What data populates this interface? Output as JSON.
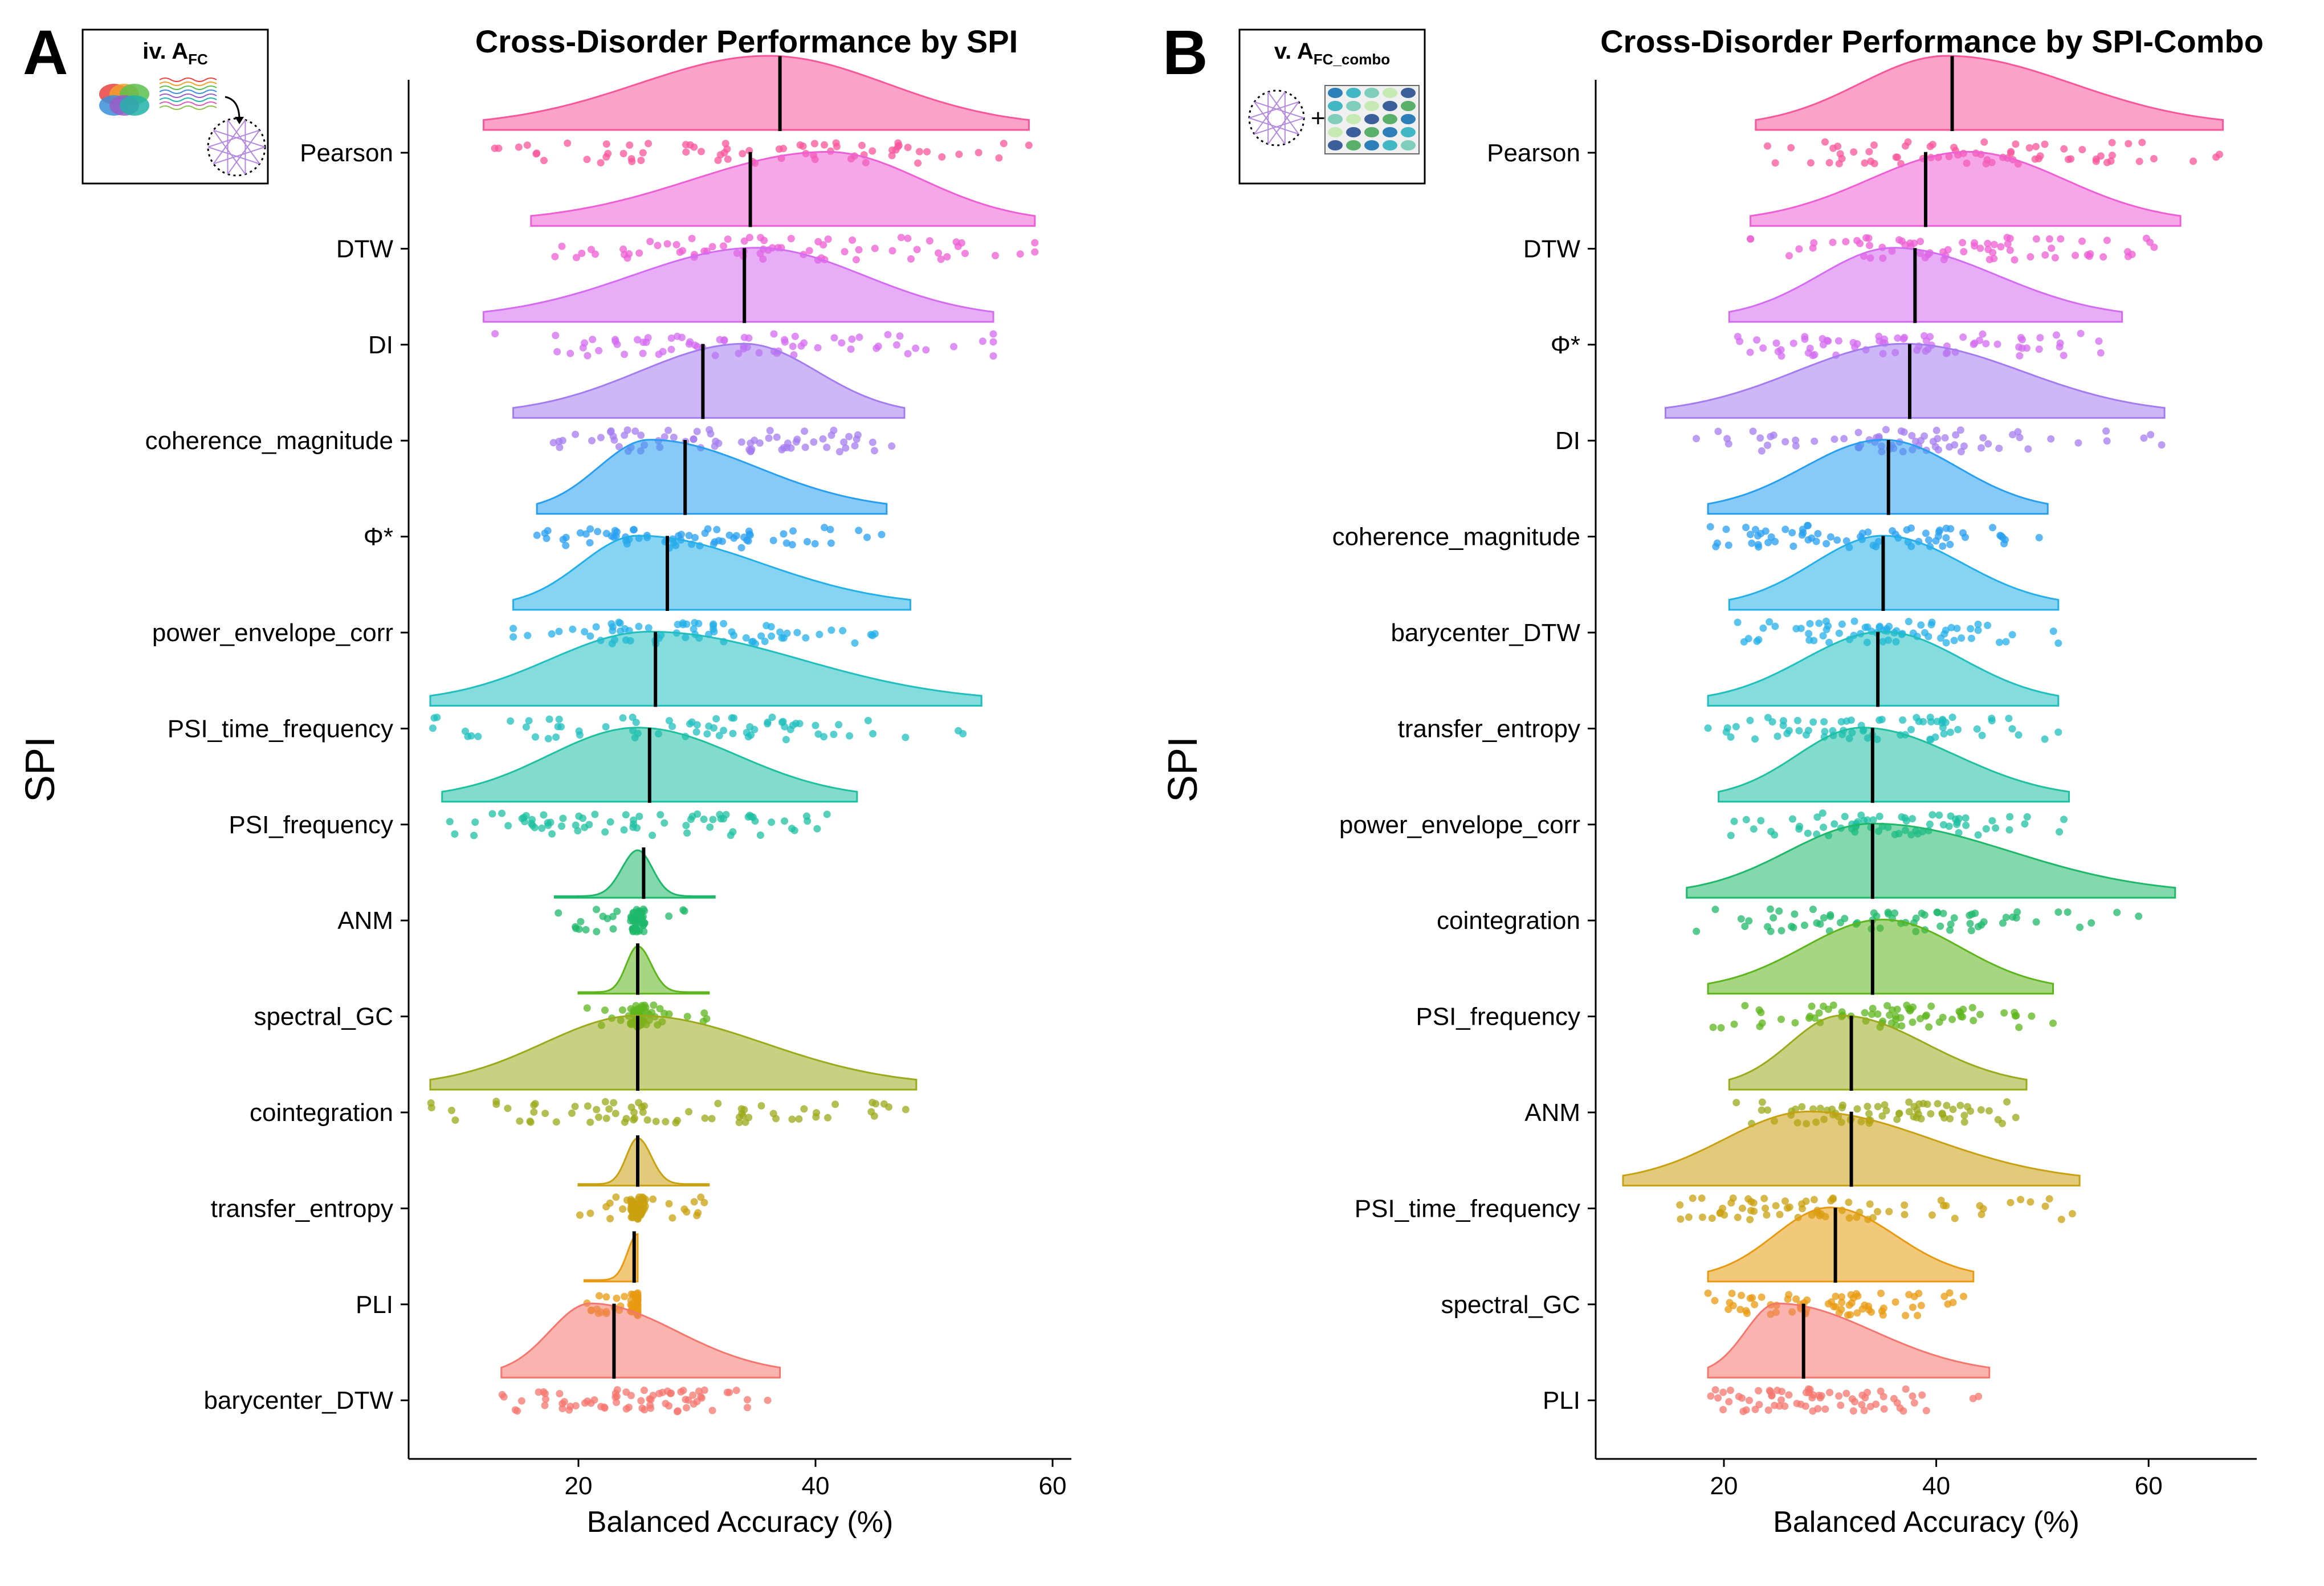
{
  "chart_data": [
    {
      "panel": "A",
      "type": "raincloud",
      "title": "Cross-Disorder Performance by SPI",
      "xlabel": "Balanced Accuracy (%)",
      "ylabel": "SPI",
      "xlim": [
        5,
        62
      ],
      "xticks": [
        20,
        40,
        60
      ],
      "inset": {
        "label": "iv. A",
        "subscript": "FC"
      },
      "grid": false,
      "legend": "none",
      "series": [
        {
          "name": "Pearson",
          "color": "#F8569B",
          "min": 12,
          "max": 58,
          "mean": 37,
          "mode": 36
        },
        {
          "name": "DTW",
          "color": "#EE5ED4",
          "min": 16,
          "max": 58.5,
          "mean": 34.5,
          "mode": 41
        },
        {
          "name": "DI",
          "color": "#D46BF0",
          "min": 12,
          "max": 55,
          "mean": 34,
          "mode": 35
        },
        {
          "name": "coherence_magnitude",
          "color": "#A47CF0",
          "min": 14.5,
          "max": 47.5,
          "mean": 30.5,
          "mode": 34
        },
        {
          "name": "Φ*",
          "color": "#279FF0",
          "min": 16.5,
          "max": 46,
          "mean": 29,
          "mode": 26
        },
        {
          "name": "power_envelope_corr",
          "color": "#23B0E8",
          "min": 14.5,
          "max": 48,
          "mean": 27.5,
          "mode": 25
        },
        {
          "name": "PSI_time_frequency",
          "color": "#1FBFBF",
          "min": 7.5,
          "max": 54,
          "mean": 26.5,
          "mode": 26
        },
        {
          "name": "PSI_frequency",
          "color": "#1DC0A0",
          "min": 8.5,
          "max": 43.5,
          "mean": 26,
          "mode": 25
        },
        {
          "name": "ANM",
          "color": "#1DB86A",
          "min": 18,
          "max": 31.5,
          "mean": 25.5,
          "mode": 25
        },
        {
          "name": "spectral_GC",
          "color": "#5DB51C",
          "min": 20,
          "max": 31,
          "mean": 25,
          "mode": 25
        },
        {
          "name": "cointegration",
          "color": "#9BAA1A",
          "min": 7.5,
          "max": 48.5,
          "mean": 25,
          "mode": 25
        },
        {
          "name": "transfer_entropy",
          "color": "#C9A00F",
          "min": 20,
          "max": 31,
          "mean": 25,
          "mode": 25
        },
        {
          "name": "PLI",
          "color": "#E89A0F",
          "min": 20.5,
          "max": 25,
          "mean": 24.7,
          "mode": 25
        },
        {
          "name": "barycenter_DTW",
          "color": "#F4766E",
          "min": 13.5,
          "max": 37,
          "mean": 23,
          "mode": 21
        }
      ]
    },
    {
      "panel": "B",
      "type": "raincloud",
      "title": "Cross-Disorder Performance by SPI-Combo",
      "xlabel": "Balanced Accuracy (%)",
      "ylabel": "SPI",
      "xlim": [
        6,
        70
      ],
      "xticks": [
        20,
        40,
        60
      ],
      "inset": {
        "label": "v. A",
        "subscript": "FC_combo"
      },
      "grid": false,
      "legend": "none",
      "series": [
        {
          "name": "Pearson",
          "color": "#F8569B",
          "min": 23,
          "max": 67,
          "mean": 41.5,
          "mode": 41
        },
        {
          "name": "DTW",
          "color": "#EE5ED4",
          "min": 22.5,
          "max": 63,
          "mean": 39,
          "mode": 43
        },
        {
          "name": "Φ*",
          "color": "#D46BF0",
          "min": 20.5,
          "max": 57.5,
          "mean": 38,
          "mode": 36
        },
        {
          "name": "DI",
          "color": "#A47CF0",
          "min": 14.5,
          "max": 61.5,
          "mean": 37.5,
          "mode": 37
        },
        {
          "name": "coherence_magnitude",
          "color": "#279FF0",
          "min": 18.5,
          "max": 50.5,
          "mean": 35.5,
          "mode": 35
        },
        {
          "name": "barycenter_DTW",
          "color": "#23B0E8",
          "min": 20.5,
          "max": 51.5,
          "mean": 35,
          "mode": 35
        },
        {
          "name": "transfer_entropy",
          "color": "#1FBFBF",
          "min": 18.5,
          "max": 51.5,
          "mean": 34.5,
          "mode": 35
        },
        {
          "name": "power_envelope_corr",
          "color": "#1DC0A0",
          "min": 19.5,
          "max": 52.5,
          "mean": 34,
          "mode": 33
        },
        {
          "name": "cointegration",
          "color": "#1DB86A",
          "min": 16.5,
          "max": 62.5,
          "mean": 34,
          "mode": 34
        },
        {
          "name": "PSI_frequency",
          "color": "#5DB51C",
          "min": 18.5,
          "max": 51,
          "mean": 34,
          "mode": 35
        },
        {
          "name": "ANM",
          "color": "#9BAA1A",
          "min": 20.5,
          "max": 48.5,
          "mean": 32,
          "mode": 31
        },
        {
          "name": "PSI_time_frequency",
          "color": "#C9A00F",
          "min": 10.5,
          "max": 53.5,
          "mean": 32,
          "mode": 28
        },
        {
          "name": "spectral_GC",
          "color": "#E89A0F",
          "min": 18.5,
          "max": 43.5,
          "mean": 30.5,
          "mode": 30
        },
        {
          "name": "PLI",
          "color": "#F4766E",
          "min": 18.5,
          "max": 45,
          "mean": 27.5,
          "mode": 25
        }
      ]
    }
  ]
}
